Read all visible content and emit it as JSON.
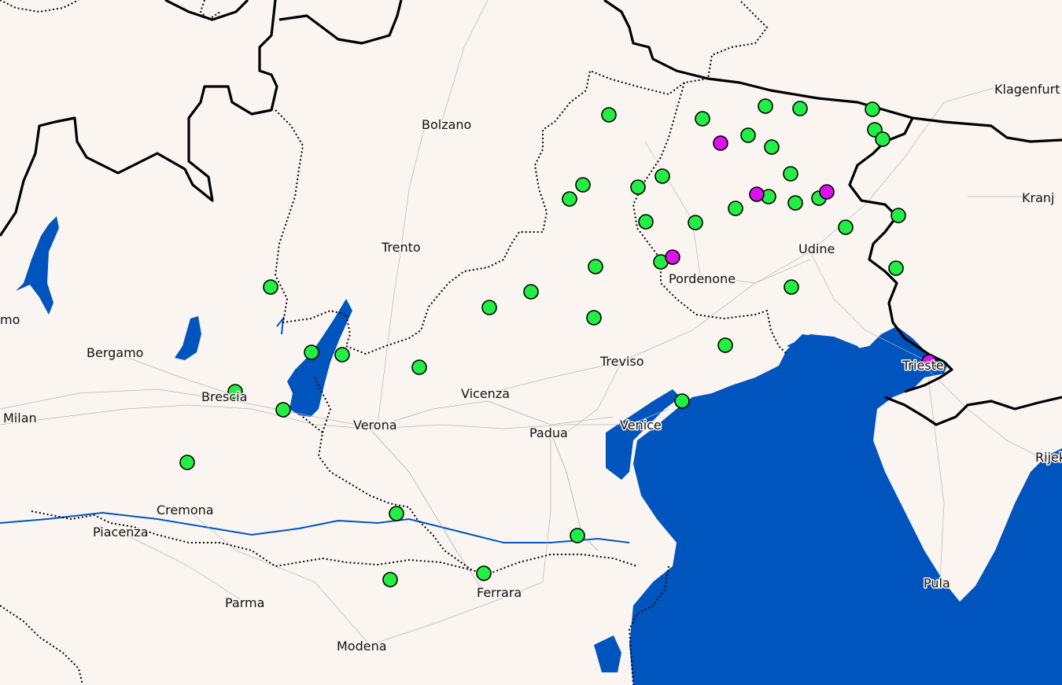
{
  "cities": [
    {
      "name": "Bolzano"
    },
    {
      "name": "Trento"
    },
    {
      "name": "Bergamo"
    },
    {
      "name": "Brescia"
    },
    {
      "name": "Milan"
    },
    {
      "name": "mo"
    },
    {
      "name": "Verona"
    },
    {
      "name": "Vicenza"
    },
    {
      "name": "Padua"
    },
    {
      "name": "Venice"
    },
    {
      "name": "Treviso"
    },
    {
      "name": "Pordenone"
    },
    {
      "name": "Udine"
    },
    {
      "name": "Trieste"
    },
    {
      "name": "Klagenfurt"
    },
    {
      "name": "Kranj"
    },
    {
      "name": "Rijeka"
    },
    {
      "name": "Pula"
    },
    {
      "name": "Cremona"
    },
    {
      "name": "Piacenza"
    },
    {
      "name": "Parma"
    },
    {
      "name": "Modena"
    },
    {
      "name": "Ferrara"
    }
  ],
  "colors": {
    "land": "#fbf5f2",
    "water": "#0054bd",
    "marker_green": "#22ee44",
    "marker_magenta": "#dd11ee",
    "border": "#000000"
  },
  "marker_count": {
    "green": 48,
    "magenta": 6
  }
}
